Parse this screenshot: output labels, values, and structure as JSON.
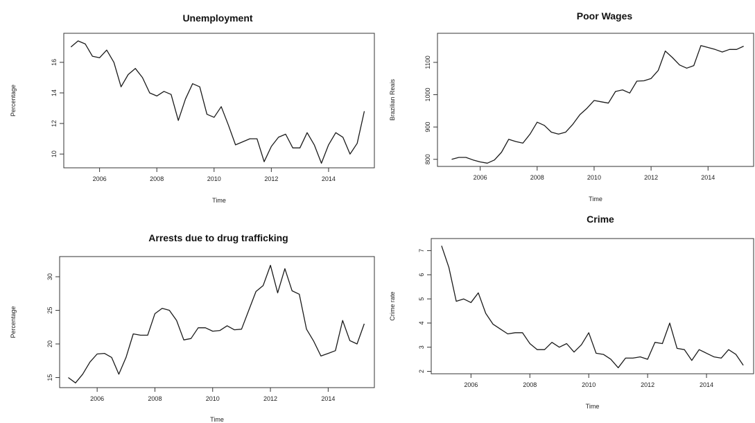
{
  "chart_data": [
    {
      "type": "line",
      "title": "Unemployment",
      "xlabel": "Time",
      "ylabel": "Percentage",
      "xlim": [
        2004.75,
        2015.6
      ],
      "ylim": [
        9.1,
        17.9
      ],
      "xticks": [
        2006,
        2008,
        2010,
        2012,
        2014
      ],
      "yticks": [
        10,
        12,
        14,
        16
      ],
      "grid": false,
      "series": [
        {
          "x": [
            2005.0,
            2005.25,
            2005.5,
            2005.75,
            2006.0,
            2006.25,
            2006.5,
            2006.75,
            2007.0,
            2007.25,
            2007.5,
            2007.75,
            2008.0,
            2008.25,
            2008.5,
            2008.75,
            2009.0,
            2009.25,
            2009.5,
            2009.75,
            2010.0,
            2010.25,
            2010.5,
            2010.75,
            2011.0,
            2011.25,
            2011.5,
            2011.75,
            2012.0,
            2012.25,
            2012.5,
            2012.75,
            2013.0,
            2013.25,
            2013.5,
            2013.75,
            2014.0,
            2014.25,
            2014.5,
            2014.75,
            2015.0,
            2015.25
          ],
          "y": [
            17.0,
            17.4,
            17.2,
            16.4,
            16.3,
            16.8,
            16.0,
            14.4,
            15.2,
            15.6,
            15.0,
            14.0,
            13.8,
            14.1,
            13.9,
            12.2,
            13.6,
            14.6,
            14.4,
            12.6,
            12.4,
            13.1,
            11.9,
            10.6,
            10.8,
            11.0,
            11.0,
            9.5,
            10.5,
            11.1,
            11.3,
            10.4,
            10.4,
            11.4,
            10.6,
            9.4,
            10.6,
            11.4,
            11.1,
            10.0,
            10.7,
            12.8
          ]
        }
      ]
    },
    {
      "type": "line",
      "title": "Poor Wages",
      "xlabel": "Time",
      "ylabel": "Brazilian Reais",
      "xlim": [
        2004.5,
        2015.6
      ],
      "ylim": [
        778,
        1190
      ],
      "xticks": [
        2006,
        2008,
        2010,
        2012,
        2014
      ],
      "yticks": [
        800,
        900,
        1000,
        1100
      ],
      "grid": false,
      "series": [
        {
          "x": [
            2005.0,
            2005.25,
            2005.5,
            2005.75,
            2006.0,
            2006.25,
            2006.5,
            2006.75,
            2007.0,
            2007.25,
            2007.5,
            2007.75,
            2008.0,
            2008.25,
            2008.5,
            2008.75,
            2009.0,
            2009.25,
            2009.5,
            2009.75,
            2010.0,
            2010.25,
            2010.5,
            2010.75,
            2011.0,
            2011.25,
            2011.5,
            2011.75,
            2012.0,
            2012.25,
            2012.5,
            2012.75,
            2013.0,
            2013.25,
            2013.5,
            2013.75,
            2014.0,
            2014.25,
            2014.5,
            2014.75,
            2015.0,
            2015.25
          ],
          "y": [
            800,
            806,
            806,
            798,
            792,
            788,
            798,
            822,
            862,
            855,
            850,
            878,
            915,
            905,
            884,
            878,
            884,
            908,
            938,
            958,
            982,
            978,
            974,
            1010,
            1015,
            1005,
            1042,
            1043,
            1050,
            1075,
            1135,
            1115,
            1092,
            1082,
            1090,
            1152,
            1146,
            1140,
            1132,
            1140,
            1140,
            1150
          ]
        }
      ]
    },
    {
      "type": "line",
      "title": "Arrests due to drug trafficking",
      "xlabel": "Time",
      "ylabel": "Percentage",
      "xlim": [
        2004.7,
        2015.6
      ],
      "ylim": [
        13.5,
        33.0
      ],
      "xticks": [
        2006,
        2008,
        2010,
        2012,
        2014
      ],
      "yticks": [
        15,
        20,
        25,
        30
      ],
      "grid": false,
      "series": [
        {
          "x": [
            2005.0,
            2005.25,
            2005.5,
            2005.75,
            2006.0,
            2006.25,
            2006.5,
            2006.75,
            2007.0,
            2007.25,
            2007.5,
            2007.75,
            2008.0,
            2008.25,
            2008.5,
            2008.75,
            2009.0,
            2009.25,
            2009.5,
            2009.75,
            2010.0,
            2010.25,
            2010.5,
            2010.75,
            2011.0,
            2011.25,
            2011.5,
            2011.75,
            2012.0,
            2012.25,
            2012.5,
            2012.75,
            2013.0,
            2013.25,
            2013.5,
            2013.75,
            2014.0,
            2014.25,
            2014.5,
            2014.75,
            2015.0,
            2015.25
          ],
          "y": [
            15.0,
            14.2,
            15.5,
            17.3,
            18.5,
            18.6,
            18.0,
            15.5,
            18.0,
            21.5,
            21.3,
            21.3,
            24.5,
            25.3,
            25.0,
            23.5,
            20.6,
            20.8,
            22.4,
            22.4,
            21.9,
            22.0,
            22.7,
            22.1,
            22.2,
            25.0,
            27.8,
            28.7,
            31.7,
            27.6,
            31.2,
            27.9,
            27.4,
            22.2,
            20.4,
            18.2,
            18.6,
            19.0,
            23.5,
            20.5,
            20.0,
            23.0
          ]
        }
      ]
    },
    {
      "type": "line",
      "title": "Crime",
      "xlabel": "Time",
      "ylabel": "Crime rate",
      "xlim": [
        2004.65,
        2015.6
      ],
      "ylim": [
        1.9,
        7.5
      ],
      "xticks": [
        2006,
        2008,
        2010,
        2012,
        2014
      ],
      "yticks": [
        2,
        3,
        4,
        5,
        6,
        7
      ],
      "grid": false,
      "series": [
        {
          "x": [
            2005.0,
            2005.25,
            2005.5,
            2005.75,
            2006.0,
            2006.25,
            2006.5,
            2006.75,
            2007.0,
            2007.25,
            2007.5,
            2007.75,
            2008.0,
            2008.25,
            2008.5,
            2008.75,
            2009.0,
            2009.25,
            2009.5,
            2009.75,
            2010.0,
            2010.25,
            2010.5,
            2010.75,
            2011.0,
            2011.25,
            2011.5,
            2011.75,
            2012.0,
            2012.25,
            2012.5,
            2012.75,
            2013.0,
            2013.25,
            2013.5,
            2013.75,
            2014.0,
            2014.25,
            2014.5,
            2014.75,
            2015.0,
            2015.25
          ],
          "y": [
            7.2,
            6.3,
            4.9,
            5.0,
            4.85,
            5.25,
            4.4,
            3.95,
            3.75,
            3.55,
            3.6,
            3.6,
            3.15,
            2.9,
            2.9,
            3.2,
            3.0,
            3.15,
            2.8,
            3.1,
            3.6,
            2.75,
            2.7,
            2.5,
            2.15,
            2.55,
            2.55,
            2.6,
            2.5,
            3.2,
            3.15,
            4.0,
            2.95,
            2.9,
            2.45,
            2.9,
            2.75,
            2.6,
            2.55,
            2.9,
            2.7,
            2.25
          ]
        }
      ]
    }
  ]
}
